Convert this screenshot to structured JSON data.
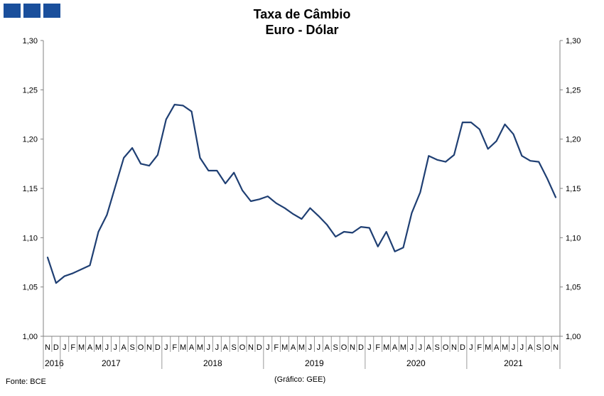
{
  "header": {
    "title_line1": "Taxa de Câmbio",
    "title_line2": "Euro - Dólar"
  },
  "footer": {
    "source": "Fonte: BCE",
    "credit": "(Gráfico: GEE)"
  },
  "colors": {
    "line": "#1f3f73",
    "logo": "#1a4f9c",
    "axis": "#808080"
  },
  "chart_data": {
    "type": "line",
    "title": "Taxa de Câmbio Euro - Dólar",
    "ylim": [
      1.0,
      1.3
    ],
    "y_ticks": [
      "1,00",
      "1,05",
      "1,10",
      "1,15",
      "1,20",
      "1,25",
      "1,30"
    ],
    "y_axis_right": true,
    "grid": false,
    "month_labels": [
      "N",
      "D",
      "J",
      "F",
      "M",
      "A",
      "M",
      "J",
      "J",
      "A",
      "S",
      "O",
      "N",
      "D",
      "J",
      "F",
      "M",
      "A",
      "M",
      "J",
      "J",
      "A",
      "S",
      "O",
      "N",
      "D",
      "J",
      "F",
      "M",
      "A",
      "M",
      "J",
      "J",
      "A",
      "S",
      "O",
      "N",
      "D",
      "J",
      "F",
      "M",
      "A",
      "M",
      "J",
      "J",
      "A",
      "S",
      "O",
      "N",
      "D",
      "J",
      "F",
      "M",
      "A",
      "M",
      "J",
      "J",
      "A",
      "S",
      "O",
      "N"
    ],
    "year_groups": [
      {
        "label": "2016",
        "start": 0,
        "end": 1
      },
      {
        "label": "2017",
        "start": 2,
        "end": 13
      },
      {
        "label": "2018",
        "start": 14,
        "end": 25
      },
      {
        "label": "2019",
        "start": 26,
        "end": 37
      },
      {
        "label": "2020",
        "start": 38,
        "end": 49
      },
      {
        "label": "2021",
        "start": 50,
        "end": 60
      }
    ],
    "series": [
      {
        "values": [
          1.08,
          1.054,
          1.061,
          1.064,
          1.068,
          1.072,
          1.106,
          1.123,
          1.152,
          1.181,
          1.191,
          1.175,
          1.173,
          1.184,
          1.22,
          1.235,
          1.234,
          1.228,
          1.181,
          1.168,
          1.168,
          1.155,
          1.166,
          1.148,
          1.137,
          1.139,
          1.142,
          1.135,
          1.13,
          1.124,
          1.119,
          1.13,
          1.122,
          1.113,
          1.101,
          1.106,
          1.105,
          1.111,
          1.11,
          1.091,
          1.106,
          1.086,
          1.09,
          1.125,
          1.146,
          1.183,
          1.179,
          1.177,
          1.184,
          1.217,
          1.217,
          1.21,
          1.19,
          1.198,
          1.215,
          1.205,
          1.183,
          1.178,
          1.177,
          1.16,
          1.141
        ]
      }
    ]
  }
}
